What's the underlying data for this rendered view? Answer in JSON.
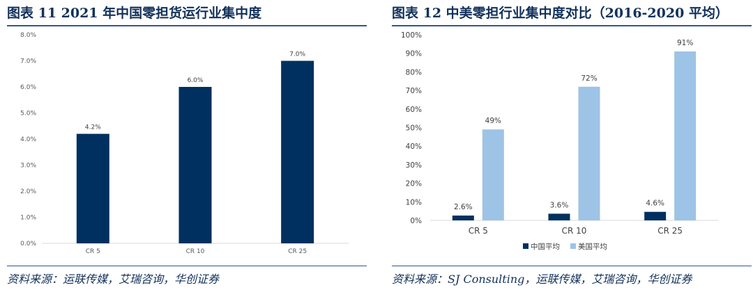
{
  "left": {
    "title": "图表 11   2021 年中国零担货运行业集中度",
    "source": "资料来源：运联传媒，艾瑞咨询，华创证券"
  },
  "right": {
    "title": "图表 12   中美零担行业集中度对比（2016-2020 平均）",
    "source": "资料来源：SJ Consulting，运联传媒，艾瑞咨询，华创证券"
  },
  "chart_data": [
    {
      "type": "bar",
      "title": "",
      "categories": [
        "CR 5",
        "CR 10",
        "CR 25"
      ],
      "series": [
        {
          "values": [
            4.2,
            6.0,
            7.0
          ],
          "color": "#00305f"
        }
      ],
      "data_labels": [
        "4.2%",
        "6.0%",
        "7.0%"
      ],
      "ylim": [
        0,
        8
      ],
      "yticks": [
        "0.0%",
        "1.0%",
        "2.0%",
        "3.0%",
        "4.0%",
        "5.0%",
        "6.0%",
        "7.0%",
        "8.0%"
      ],
      "grid": false,
      "legend": "none"
    },
    {
      "type": "bar",
      "title": "",
      "categories": [
        "CR 5",
        "CR 10",
        "CR 25"
      ],
      "series": [
        {
          "name": "中国平均",
          "values": [
            2.6,
            3.6,
            4.6
          ],
          "color": "#00305f",
          "labels": [
            "2.6%",
            "3.6%",
            "4.6%"
          ]
        },
        {
          "name": "美国平均",
          "values": [
            49,
            72,
            91
          ],
          "color": "#9dc3e6",
          "labels": [
            "49%",
            "72%",
            "91%"
          ]
        }
      ],
      "ylim": [
        0,
        100
      ],
      "yticks": [
        "0%",
        "10%",
        "20%",
        "30%",
        "40%",
        "50%",
        "60%",
        "70%",
        "80%",
        "90%",
        "100%"
      ],
      "grid": false,
      "legend": "bottom"
    }
  ]
}
